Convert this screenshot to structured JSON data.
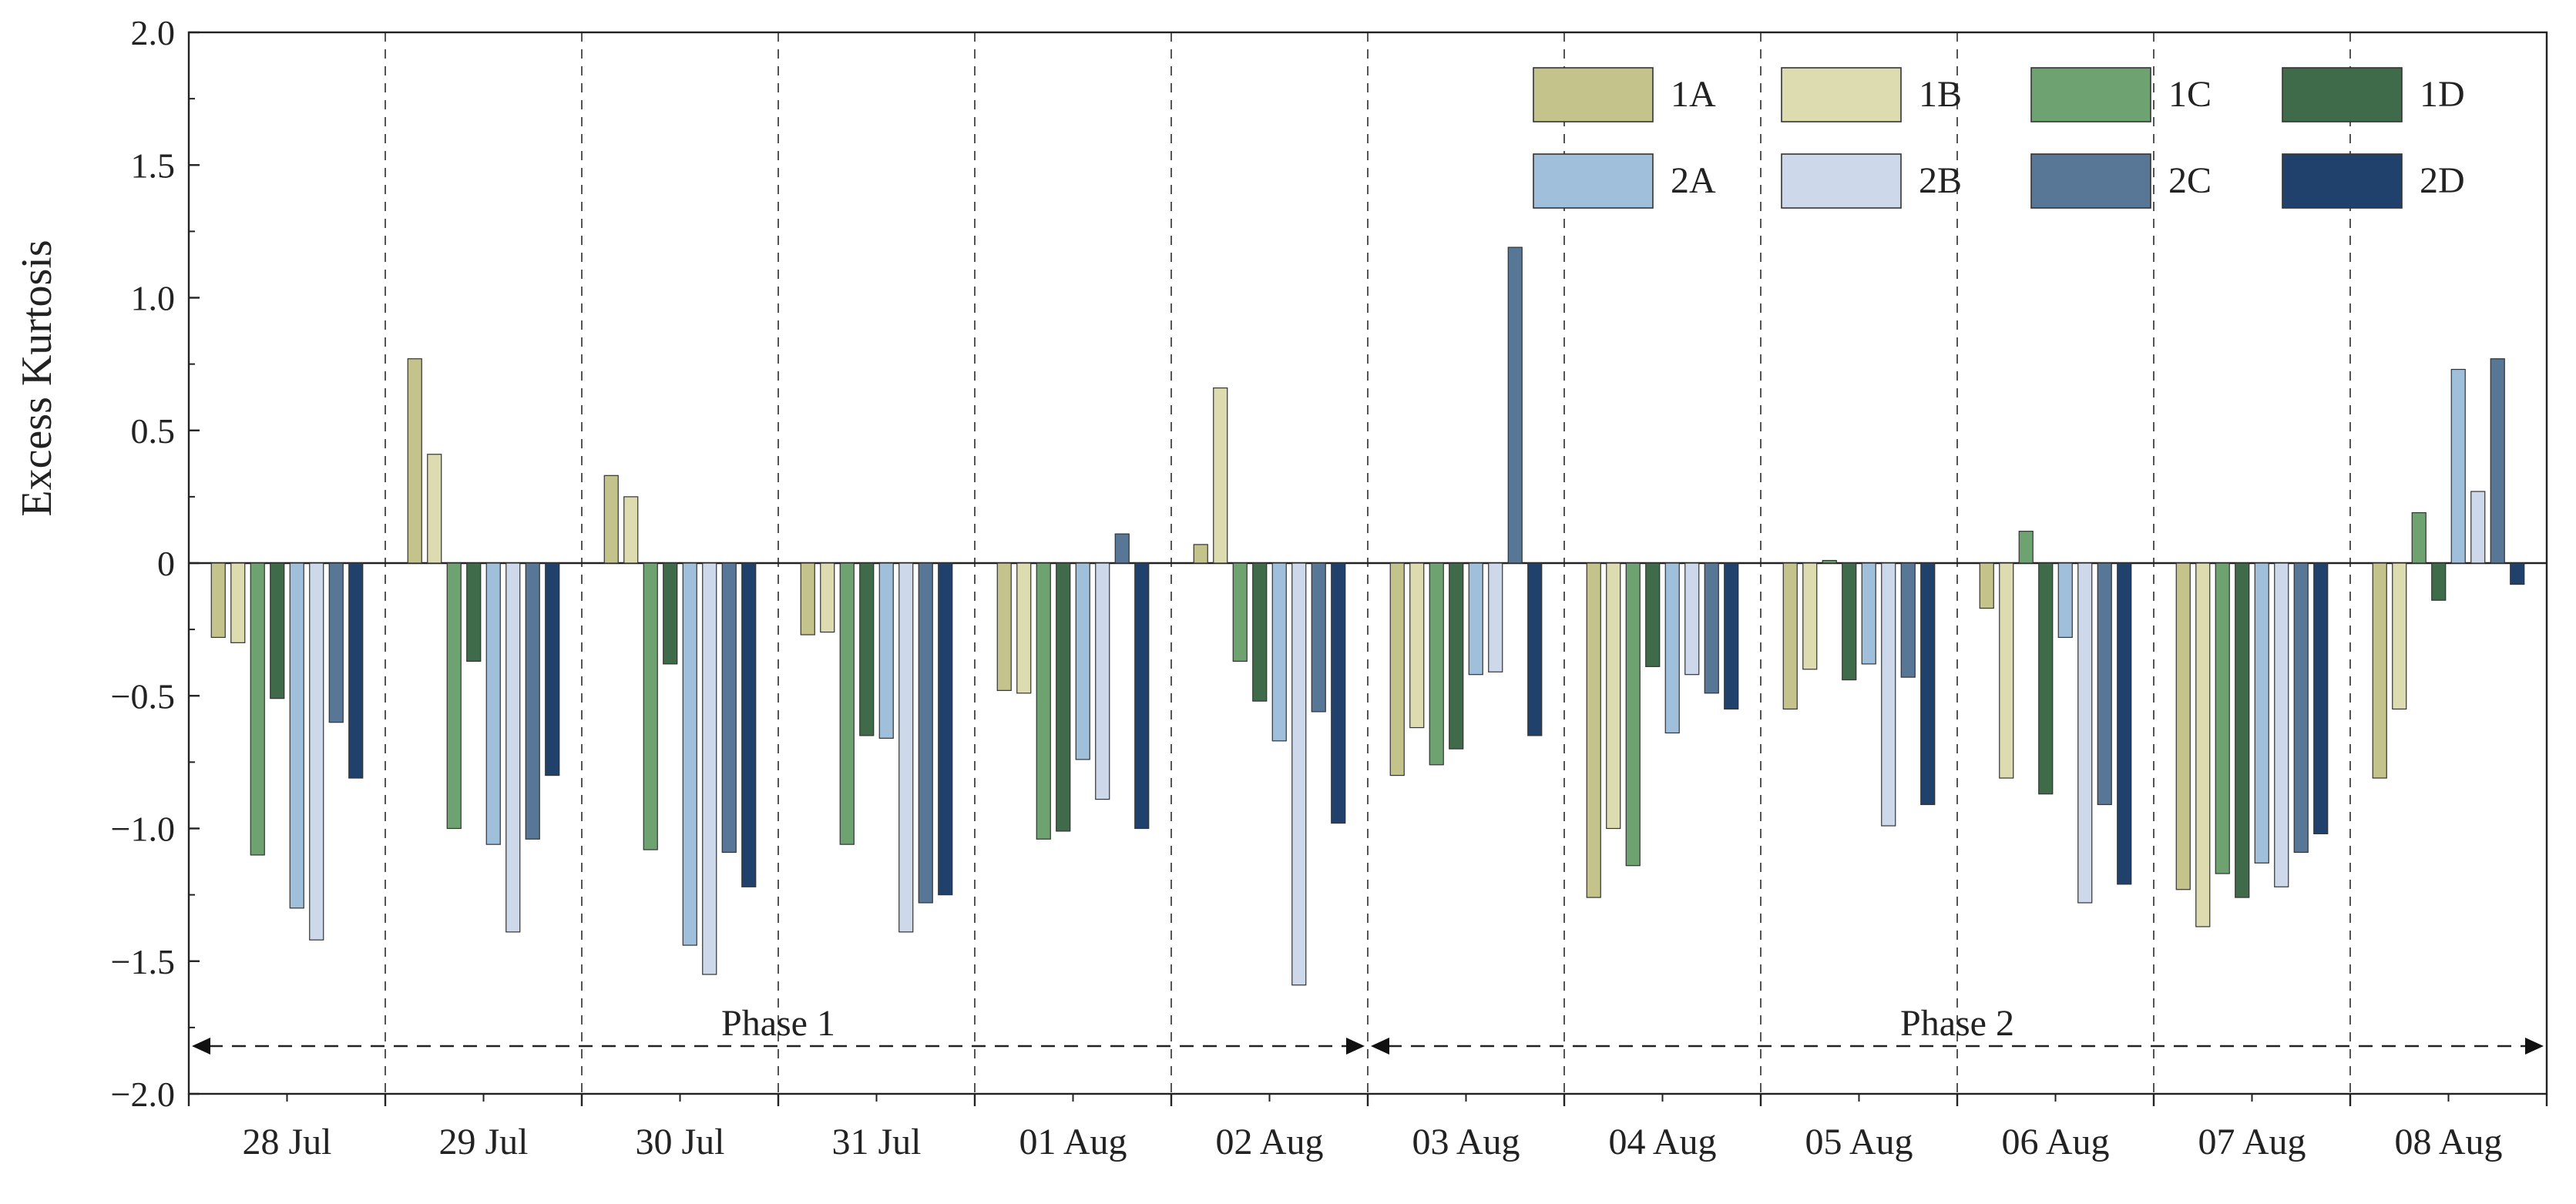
{
  "chart_data": {
    "type": "bar",
    "ylabel": "Excess Kurtosis",
    "xlabel": "",
    "ylim": [
      -2.0,
      2.0
    ],
    "yticks": [
      -2.0,
      -1.5,
      -1.0,
      -0.5,
      0,
      0.5,
      1.0,
      1.5,
      2.0
    ],
    "ytick_labels": [
      "−2.0",
      "−1.5",
      "−1.0",
      "−0.5",
      "0",
      "0.5",
      "1.0",
      "1.5",
      "2.0"
    ],
    "categories": [
      "28 Jul",
      "29 Jul",
      "30 Jul",
      "31 Jul",
      "01 Aug",
      "02 Aug",
      "03 Aug",
      "04 Aug",
      "05 Aug",
      "06 Aug",
      "07 Aug",
      "08 Aug"
    ],
    "series": [
      {
        "name": "1A",
        "color": "#c3c38b",
        "values": [
          -0.28,
          0.77,
          0.33,
          -0.27,
          -0.48,
          0.07,
          -0.8,
          -1.26,
          -0.55,
          -0.17,
          -1.23,
          -0.81
        ]
      },
      {
        "name": "1B",
        "color": "#dcdcb0",
        "values": [
          -0.3,
          0.41,
          0.25,
          -0.26,
          -0.49,
          0.66,
          -0.62,
          -1.0,
          -0.4,
          -0.81,
          -1.37,
          -0.55
        ]
      },
      {
        "name": "1C",
        "color": "#6fa271",
        "values": [
          -1.1,
          -1.0,
          -1.08,
          -1.06,
          -1.04,
          -0.37,
          -0.76,
          -1.14,
          0.01,
          0.12,
          -1.17,
          0.19
        ]
      },
      {
        "name": "1D",
        "color": "#3f6b4a",
        "values": [
          -0.51,
          -0.37,
          -0.38,
          -0.65,
          -1.01,
          -0.52,
          -0.7,
          -0.39,
          -0.44,
          -0.87,
          -1.26,
          -0.14
        ]
      },
      {
        "name": "2A",
        "color": "#9fbfdb",
        "values": [
          -1.3,
          -1.06,
          -1.44,
          -0.66,
          -0.74,
          -0.67,
          -0.42,
          -0.64,
          -0.38,
          -0.28,
          -1.13,
          0.73
        ]
      },
      {
        "name": "2B",
        "color": "#cdd9ea",
        "values": [
          -1.42,
          -1.39,
          -1.55,
          -1.39,
          -0.89,
          -1.59,
          -0.41,
          -0.42,
          -0.99,
          -1.28,
          -1.22,
          0.27
        ]
      },
      {
        "name": "2C",
        "color": "#587696",
        "values": [
          -0.6,
          -1.04,
          -1.09,
          -1.28,
          0.11,
          -0.56,
          1.19,
          -0.49,
          -0.43,
          -0.91,
          -1.09,
          0.77
        ]
      },
      {
        "name": "2D",
        "color": "#1f416b",
        "values": [
          -0.81,
          -0.8,
          -1.22,
          -1.25,
          -1.0,
          -0.98,
          -0.65,
          -0.55,
          -0.91,
          -1.21,
          -1.02,
          -0.08
        ]
      }
    ],
    "legend": {
      "placement": "top-right",
      "columns": 4
    },
    "grid": false,
    "annotations": [
      {
        "text": "Phase 1",
        "from": "28 Jul",
        "to": "02 Aug"
      },
      {
        "text": "Phase 2",
        "from": "03 Aug",
        "to": "08 Aug"
      }
    ]
  }
}
